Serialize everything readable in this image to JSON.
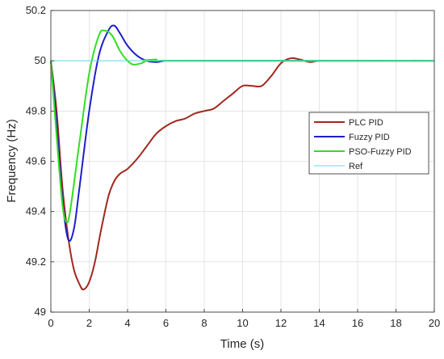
{
  "chart_data": {
    "type": "line",
    "title": "",
    "xlabel": "Time (s)",
    "ylabel": "Frequency (Hz)",
    "xlim": [
      0,
      20
    ],
    "ylim": [
      49,
      50.2
    ],
    "xticks": [
      "0",
      "2",
      "4",
      "6",
      "8",
      "10",
      "12",
      "14",
      "16",
      "18",
      "20"
    ],
    "yticks": [
      "49",
      "49.2",
      "49.4",
      "49.6",
      "49.8",
      "50",
      "50.2"
    ],
    "grid": true,
    "legend_position": "right",
    "series": [
      {
        "name": "PLC PID",
        "color": "#a0281e",
        "points": [
          [
            0,
            50.0
          ],
          [
            0.3,
            49.8
          ],
          [
            0.6,
            49.5
          ],
          [
            0.9,
            49.3
          ],
          [
            1.2,
            49.17
          ],
          [
            1.5,
            49.11
          ],
          [
            1.7,
            49.09
          ],
          [
            2.0,
            49.12
          ],
          [
            2.3,
            49.2
          ],
          [
            2.6,
            49.32
          ],
          [
            3.0,
            49.46
          ],
          [
            3.3,
            49.52
          ],
          [
            3.6,
            49.55
          ],
          [
            4.0,
            49.57
          ],
          [
            4.5,
            49.61
          ],
          [
            5.0,
            49.66
          ],
          [
            5.5,
            49.71
          ],
          [
            6.0,
            49.74
          ],
          [
            6.5,
            49.76
          ],
          [
            7.0,
            49.77
          ],
          [
            7.5,
            49.79
          ],
          [
            8.0,
            49.8
          ],
          [
            8.5,
            49.81
          ],
          [
            9.0,
            49.84
          ],
          [
            9.5,
            49.87
          ],
          [
            10.0,
            49.9
          ],
          [
            10.5,
            49.9
          ],
          [
            11.0,
            49.9
          ],
          [
            11.5,
            49.94
          ],
          [
            12.0,
            49.99
          ],
          [
            12.5,
            50.01
          ],
          [
            13.0,
            50.005
          ],
          [
            13.5,
            49.995
          ],
          [
            14.0,
            50.0
          ],
          [
            15.0,
            50.0
          ],
          [
            20.0,
            50.0
          ]
        ]
      },
      {
        "name": "Fuzzy PID",
        "color": "#1e1ecc",
        "points": [
          [
            0,
            50.0
          ],
          [
            0.3,
            49.75
          ],
          [
            0.6,
            49.45
          ],
          [
            0.9,
            49.29
          ],
          [
            1.2,
            49.33
          ],
          [
            1.5,
            49.5
          ],
          [
            2.0,
            49.8
          ],
          [
            2.5,
            50.02
          ],
          [
            3.0,
            50.12
          ],
          [
            3.3,
            50.14
          ],
          [
            3.6,
            50.11
          ],
          [
            4.0,
            50.06
          ],
          [
            4.5,
            50.02
          ],
          [
            5.0,
            50.0
          ],
          [
            5.5,
            49.995
          ],
          [
            6.0,
            50.0
          ],
          [
            7.0,
            50.0
          ],
          [
            20.0,
            50.0
          ]
        ]
      },
      {
        "name": "PSO-Fuzzy PID",
        "color": "#33dd22",
        "points": [
          [
            0,
            50.0
          ],
          [
            0.3,
            49.7
          ],
          [
            0.6,
            49.43
          ],
          [
            0.8,
            49.36
          ],
          [
            1.0,
            49.4
          ],
          [
            1.5,
            49.68
          ],
          [
            2.0,
            49.95
          ],
          [
            2.5,
            50.1
          ],
          [
            2.8,
            50.12
          ],
          [
            3.2,
            50.1
          ],
          [
            3.6,
            50.04
          ],
          [
            4.0,
            50.0
          ],
          [
            4.3,
            49.985
          ],
          [
            4.7,
            49.99
          ],
          [
            5.0,
            50.0
          ],
          [
            5.5,
            50.005
          ],
          [
            6.0,
            50.0
          ],
          [
            20.0,
            50.0
          ]
        ]
      },
      {
        "name": "Ref",
        "color": "#55e0f0",
        "points": [
          [
            0,
            50.0
          ],
          [
            20.0,
            50.0
          ]
        ]
      }
    ]
  }
}
